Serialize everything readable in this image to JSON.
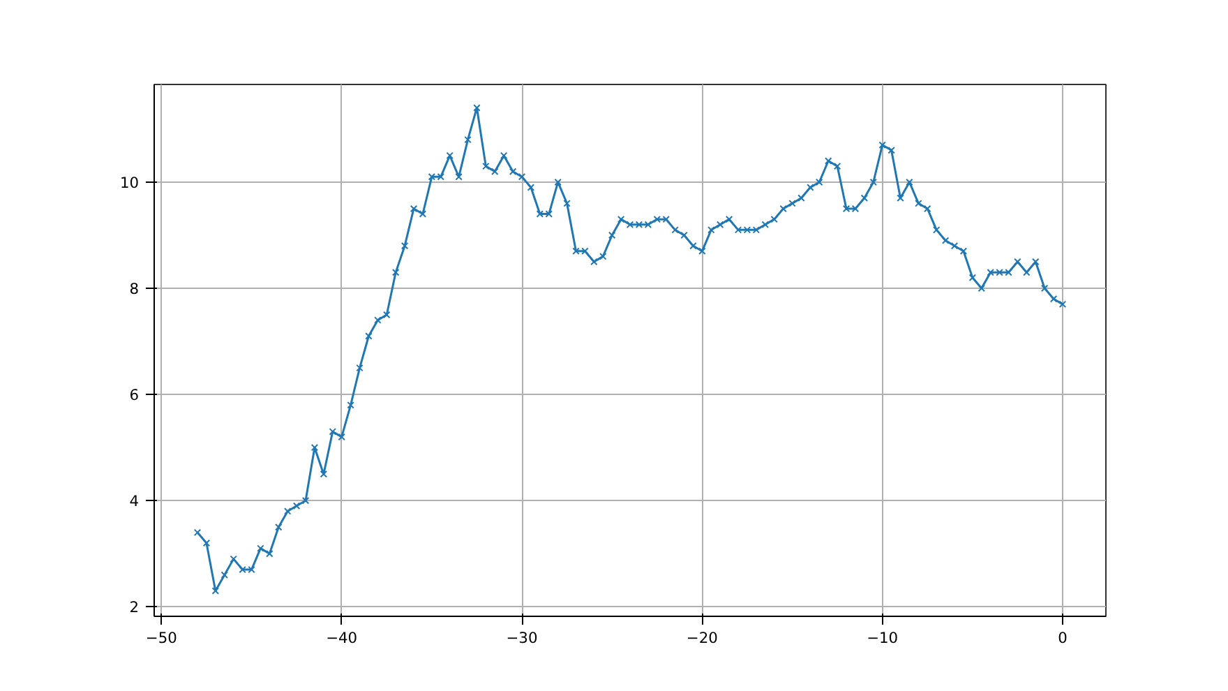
{
  "chart_data": {
    "type": "line",
    "xlim": [
      -50.4,
      2.4
    ],
    "ylim": [
      1.82,
      11.84
    ],
    "xticks": [
      -50,
      -40,
      -30,
      -20,
      -10,
      0
    ],
    "yticks": [
      2,
      4,
      6,
      8,
      10
    ],
    "grid": true,
    "marker": "cross",
    "line_style": "solid",
    "x": [
      -48,
      -47.5,
      -47,
      -46.5,
      -46,
      -45.5,
      -45,
      -44.5,
      -44,
      -43.5,
      -43,
      -42.5,
      -42,
      -41.5,
      -41,
      -40.5,
      -40,
      -39.5,
      -39,
      -38.5,
      -38,
      -37.5,
      -37,
      -36.5,
      -36,
      -35.5,
      -35,
      -34.5,
      -34,
      -33.5,
      -33,
      -32.5,
      -32,
      -31.5,
      -31,
      -30.5,
      -30,
      -29.5,
      -29,
      -28.5,
      -28,
      -27.5,
      -27,
      -26.5,
      -26,
      -25.5,
      -25,
      -24.5,
      -24,
      -23.5,
      -23,
      -22.5,
      -22,
      -21.5,
      -21,
      -20.5,
      -20,
      -19.5,
      -19,
      -18.5,
      -18,
      -17.5,
      -17,
      -16.5,
      -16,
      -15.5,
      -15,
      -14.5,
      -14,
      -13.5,
      -13,
      -12.5,
      -12,
      -11.5,
      -11,
      -10.5,
      -10,
      -9.5,
      -9,
      -8.5,
      -8,
      -7.5,
      -7,
      -6.5,
      -6,
      -5.5,
      -5,
      -4.5,
      -4,
      -3.5,
      -3,
      -2.5,
      -2,
      -1.5,
      -1,
      -0.5,
      0
    ],
    "series": [
      {
        "color": "#1f77b4",
        "values": [
          3.4,
          3.2,
          2.3,
          2.6,
          2.9,
          2.7,
          2.7,
          3.1,
          3.0,
          3.5,
          3.8,
          3.9,
          4.0,
          5.0,
          4.5,
          5.3,
          5.2,
          5.8,
          6.5,
          7.1,
          7.4,
          7.5,
          8.3,
          8.8,
          9.5,
          9.4,
          10.1,
          10.1,
          10.5,
          10.1,
          10.8,
          11.4,
          10.3,
          10.2,
          10.5,
          10.2,
          10.1,
          9.9,
          9.4,
          9.4,
          10.0,
          9.6,
          8.7,
          8.7,
          8.5,
          8.6,
          9.0,
          9.3,
          9.2,
          9.2,
          9.2,
          9.3,
          9.3,
          9.1,
          9.0,
          8.8,
          8.7,
          9.1,
          9.2,
          9.3,
          9.1,
          9.1,
          9.1,
          9.2,
          9.3,
          9.5,
          9.6,
          9.7,
          9.9,
          10.0,
          10.4,
          10.3,
          9.5,
          9.5,
          9.7,
          10.0,
          10.7,
          10.6,
          9.7,
          10.0,
          9.6,
          9.5,
          9.1,
          8.9,
          8.8,
          8.7,
          8.2,
          8.0,
          8.3,
          8.3,
          8.3,
          8.5,
          8.3,
          8.5,
          8.0,
          7.8,
          7.7
        ]
      }
    ]
  }
}
